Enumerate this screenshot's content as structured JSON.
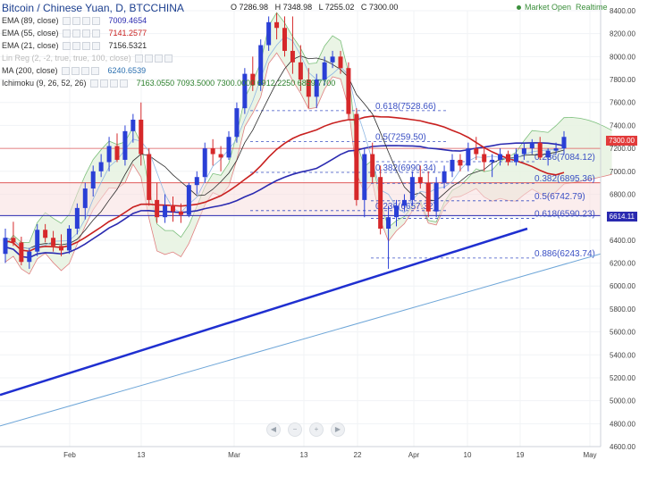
{
  "title": "Bitcoin / Chinese Yuan, D, BTCCHINA",
  "ohlc": {
    "o": "O 7286.98",
    "h": "H 7348.98",
    "l": "L 7255.02",
    "c": "C 7300.00"
  },
  "status": "Market Open",
  "status_extra": "Realtime",
  "indicators": [
    {
      "name": "EMA (89, close)",
      "value": "7009.4654",
      "color": "#2a2ab0"
    },
    {
      "name": "EMA (55, close)",
      "value": "7141.2577",
      "color": "#c8201f"
    },
    {
      "name": "EMA (21, close)",
      "value": "7156.5321",
      "color": "#2a2a2a"
    },
    {
      "name": "Lin Reg (2, -2, true, true, 100, close)",
      "value": "",
      "color": "#aaaaaa"
    },
    {
      "name": "MA (200, close)",
      "value": "6240.6539",
      "color": "#2a6fb0"
    },
    {
      "name": "Ichimoku (9, 26, 52, 26)",
      "value": "7163.0550 7093.5000 7300.0000 6912.2250 6859.7700",
      "color": "#2a7f2a"
    }
  ],
  "price_tags": {
    "last": "7300.00",
    "level": "6614.11"
  },
  "chart_data": {
    "type": "candlestick",
    "symbol": "BTCCNY",
    "yaxis": {
      "min": 4600,
      "max": 8400,
      "ticks": [
        4600,
        4800,
        5000,
        5200,
        5400,
        5600,
        5800,
        6000,
        6200,
        6400,
        6600,
        6800,
        7000,
        7200,
        7400,
        7600,
        7800,
        8000,
        8200,
        8400
      ]
    },
    "xaxis": {
      "labels": [
        "Feb",
        "13",
        "Mar",
        "13",
        "22",
        "Apr",
        "10",
        "19",
        "May"
      ]
    },
    "candles": [
      [
        6280,
        6500,
        6200,
        6420
      ],
      [
        6420,
        6560,
        6350,
        6380
      ],
      [
        6380,
        6430,
        6180,
        6210
      ],
      [
        6210,
        6330,
        6150,
        6300
      ],
      [
        6300,
        6540,
        6260,
        6490
      ],
      [
        6490,
        6540,
        6380,
        6420
      ],
      [
        6420,
        6480,
        6300,
        6350
      ],
      [
        6350,
        6450,
        6260,
        6310
      ],
      [
        6310,
        6530,
        6280,
        6500
      ],
      [
        6500,
        6720,
        6450,
        6680
      ],
      [
        6680,
        6900,
        6580,
        6850
      ],
      [
        6850,
        7050,
        6780,
        7000
      ],
      [
        7000,
        7150,
        6950,
        7080
      ],
      [
        7080,
        7300,
        7000,
        7220
      ],
      [
        7220,
        7330,
        7080,
        7100
      ],
      [
        7100,
        7400,
        7050,
        7350
      ],
      [
        7350,
        7500,
        7250,
        7450
      ],
      [
        7450,
        7600,
        7050,
        7150
      ],
      [
        7150,
        7200,
        6700,
        6750
      ],
      [
        6750,
        6900,
        6550,
        6600
      ],
      [
        6600,
        6800,
        6550,
        6700
      ],
      [
        6700,
        6780,
        6560,
        6650
      ],
      [
        6650,
        6720,
        6550,
        6620
      ],
      [
        6620,
        6900,
        6600,
        6880
      ],
      [
        6880,
        7000,
        6800,
        6950
      ],
      [
        6950,
        7250,
        6900,
        7200
      ],
      [
        7200,
        7280,
        7050,
        7150
      ],
      [
        7150,
        7220,
        7000,
        7120
      ],
      [
        7120,
        7350,
        7100,
        7300
      ],
      [
        7300,
        7600,
        7250,
        7550
      ],
      [
        7550,
        7900,
        7500,
        7850
      ],
      [
        7850,
        8000,
        7700,
        7750
      ],
      [
        7750,
        8150,
        7700,
        8100
      ],
      [
        8100,
        8350,
        8050,
        8300
      ],
      [
        8300,
        8380,
        8150,
        8250
      ],
      [
        8250,
        8350,
        8000,
        8050
      ],
      [
        8050,
        8350,
        7850,
        7950
      ],
      [
        7950,
        8100,
        7700,
        7800
      ],
      [
        7800,
        7900,
        7550,
        7650
      ],
      [
        7650,
        7850,
        7550,
        7800
      ],
      [
        7800,
        8000,
        7750,
        7950
      ],
      [
        7950,
        8050,
        7900,
        8000
      ],
      [
        8000,
        8050,
        7850,
        7900
      ],
      [
        7900,
        7950,
        7450,
        7500
      ],
      [
        7500,
        7550,
        6700,
        6750
      ],
      [
        6750,
        7200,
        6600,
        7150
      ],
      [
        7150,
        7250,
        6900,
        6950
      ],
      [
        6950,
        7050,
        6450,
        6500
      ],
      [
        6500,
        6700,
        6150,
        6600
      ],
      [
        6600,
        6750,
        6520,
        6700
      ],
      [
        6700,
        6800,
        6650,
        6750
      ],
      [
        6750,
        7000,
        6700,
        6950
      ],
      [
        6950,
        7050,
        6850,
        6900
      ],
      [
        6900,
        7000,
        6600,
        6650
      ],
      [
        6650,
        6950,
        6600,
        6900
      ],
      [
        6900,
        7050,
        6850,
        7000
      ],
      [
        7000,
        7150,
        6950,
        7100
      ],
      [
        7100,
        7150,
        7000,
        7050
      ],
      [
        7050,
        7250,
        7000,
        7200
      ],
      [
        7200,
        7300,
        7100,
        7150
      ],
      [
        7150,
        7200,
        7000,
        7080
      ],
      [
        7080,
        7150,
        6950,
        7100
      ],
      [
        7100,
        7200,
        7050,
        7150
      ],
      [
        7150,
        7180,
        7050,
        7080
      ],
      [
        7080,
        7200,
        7050,
        7150
      ],
      [
        7150,
        7250,
        7100,
        7200
      ],
      [
        7200,
        7280,
        7150,
        7250
      ],
      [
        7250,
        7300,
        7100,
        7120
      ],
      [
        7120,
        7200,
        7050,
        7180
      ],
      [
        7180,
        7250,
        7150,
        7200
      ],
      [
        7200,
        7350,
        7150,
        7300
      ]
    ],
    "fib_levels": [
      {
        "label": "0.618(7528.66)",
        "value": 7528.66
      },
      {
        "label": "0.5(7259.50)",
        "value": 7259.5
      },
      {
        "label": "0.382(6990.34)",
        "value": 6990.34
      },
      {
        "label": "0.236(6657.32)",
        "value": 6657.32
      },
      {
        "label": "0.236(7084.12)",
        "value": 7084.12
      },
      {
        "label": "0.382(6895.36)",
        "value": 6895.36
      },
      {
        "label": "0.5(6742.79)",
        "value": 6742.79
      },
      {
        "label": "0.618(6590.23)",
        "value": 6590.23
      },
      {
        "label": "0.886(6243.74)",
        "value": 6243.74
      }
    ],
    "horizontal_lines": [
      6614.11,
      6900
    ],
    "trendline": {
      "from": [
        0,
        5050
      ],
      "to": [
        70,
        6500
      ]
    },
    "ma200_path": [
      [
        0,
        4780
      ],
      [
        70,
        6240
      ]
    ]
  }
}
